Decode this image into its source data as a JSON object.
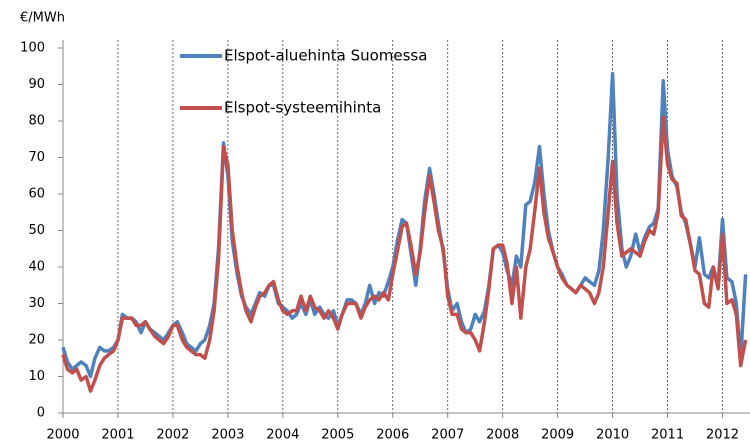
{
  "chart_data": {
    "type": "line",
    "y_label": "€/MWh",
    "x": [
      2000.0,
      2000.08,
      2000.17,
      2000.25,
      2000.33,
      2000.42,
      2000.5,
      2000.58,
      2000.67,
      2000.75,
      2000.83,
      2000.92,
      2001.0,
      2001.08,
      2001.17,
      2001.25,
      2001.33,
      2001.42,
      2001.5,
      2001.58,
      2001.67,
      2001.75,
      2001.83,
      2001.92,
      2002.0,
      2002.08,
      2002.17,
      2002.25,
      2002.33,
      2002.42,
      2002.5,
      2002.58,
      2002.67,
      2002.75,
      2002.83,
      2002.92,
      2003.0,
      2003.08,
      2003.17,
      2003.25,
      2003.33,
      2003.42,
      2003.5,
      2003.58,
      2003.67,
      2003.75,
      2003.83,
      2003.92,
      2004.0,
      2004.08,
      2004.17,
      2004.25,
      2004.33,
      2004.42,
      2004.5,
      2004.58,
      2004.67,
      2004.75,
      2004.83,
      2004.92,
      2005.0,
      2005.08,
      2005.17,
      2005.25,
      2005.33,
      2005.42,
      2005.5,
      2005.58,
      2005.67,
      2005.75,
      2005.83,
      2005.92,
      2006.0,
      2006.08,
      2006.17,
      2006.25,
      2006.33,
      2006.42,
      2006.5,
      2006.58,
      2006.67,
      2006.75,
      2006.83,
      2006.92,
      2007.0,
      2007.08,
      2007.17,
      2007.25,
      2007.33,
      2007.42,
      2007.5,
      2007.58,
      2007.67,
      2007.75,
      2007.83,
      2007.92,
      2008.0,
      2008.08,
      2008.17,
      2008.25,
      2008.33,
      2008.42,
      2008.5,
      2008.58,
      2008.67,
      2008.75,
      2008.83,
      2008.92,
      2009.0,
      2009.08,
      2009.17,
      2009.25,
      2009.33,
      2009.42,
      2009.5,
      2009.58,
      2009.67,
      2009.75,
      2009.83,
      2009.92,
      2010.0,
      2010.08,
      2010.17,
      2010.25,
      2010.33,
      2010.42,
      2010.5,
      2010.58,
      2010.67,
      2010.75,
      2010.83,
      2010.92,
      2011.0,
      2011.08,
      2011.17,
      2011.25,
      2011.33,
      2011.42,
      2011.5,
      2011.58,
      2011.67,
      2011.75,
      2011.83,
      2011.92,
      2012.0,
      2012.08,
      2012.17,
      2012.25,
      2012.33,
      2012.42
    ],
    "series": [
      {
        "name": "Elspot-aluehinta Suomessa",
        "color": "#4f81bd",
        "values": [
          18,
          14,
          12,
          13,
          14,
          13,
          10,
          15,
          18,
          17,
          17,
          18,
          20,
          27,
          26,
          26,
          25,
          22,
          25,
          23,
          22,
          21,
          20,
          22,
          24,
          25,
          22,
          19,
          18,
          17,
          19,
          20,
          24,
          30,
          45,
          74,
          65,
          47,
          38,
          32,
          29,
          27,
          30,
          33,
          32,
          35,
          35,
          30,
          29,
          28,
          26,
          27,
          30,
          27,
          31,
          27,
          29,
          27,
          26,
          28,
          24,
          27,
          31,
          31,
          30,
          27,
          30,
          35,
          30,
          33,
          32,
          36,
          40,
          47,
          53,
          52,
          44,
          35,
          45,
          58,
          67,
          60,
          52,
          44,
          34,
          28,
          30,
          25,
          22,
          23,
          27,
          25,
          28,
          35,
          45,
          46,
          44,
          39,
          35,
          43,
          40,
          57,
          58,
          63,
          73,
          60,
          50,
          44,
          40,
          38,
          35,
          34,
          33,
          35,
          37,
          36,
          35,
          39,
          50,
          70,
          93,
          60,
          45,
          40,
          43,
          49,
          44,
          48,
          51,
          52,
          56,
          91,
          72,
          65,
          62,
          55,
          52,
          46,
          40,
          48,
          38,
          37,
          40,
          35,
          53,
          37,
          36,
          30,
          15,
          38
        ]
      },
      {
        "name": "Elspot-systeemihinta",
        "color": "#c0504d",
        "values": [
          16,
          12,
          11,
          12,
          9,
          10,
          6,
          9,
          13,
          15,
          16,
          17,
          20,
          26,
          26,
          26,
          24,
          24,
          25,
          23,
          21,
          20,
          19,
          21,
          24,
          24,
          20,
          18,
          17,
          16,
          16,
          15,
          20,
          28,
          42,
          73,
          68,
          50,
          40,
          33,
          28,
          25,
          29,
          32,
          33,
          35,
          36,
          31,
          28,
          27,
          28,
          28,
          32,
          28,
          32,
          29,
          28,
          26,
          28,
          26,
          23,
          27,
          30,
          30,
          30,
          26,
          29,
          31,
          32,
          31,
          33,
          31,
          38,
          44,
          51,
          52,
          46,
          38,
          44,
          55,
          65,
          58,
          50,
          45,
          32,
          27,
          27,
          23,
          22,
          22,
          20,
          17,
          25,
          34,
          45,
          46,
          46,
          41,
          30,
          40,
          26,
          40,
          45,
          55,
          67,
          55,
          48,
          44,
          40,
          37,
          35,
          34,
          33,
          35,
          34,
          33,
          30,
          33,
          40,
          55,
          69,
          52,
          43,
          44,
          45,
          44,
          43,
          47,
          50,
          49,
          55,
          81,
          68,
          64,
          63,
          54,
          53,
          46,
          39,
          38,
          30,
          29,
          40,
          34,
          49,
          30,
          31,
          27,
          13,
          20
        ]
      }
    ],
    "xlim": [
      2000,
      2012.5
    ],
    "xticks": [
      2000,
      2001,
      2002,
      2003,
      2004,
      2005,
      2006,
      2007,
      2008,
      2009,
      2010,
      2011,
      2012
    ],
    "ylim": [
      0,
      100
    ],
    "yticks": [
      0,
      10,
      20,
      30,
      40,
      50,
      60,
      70,
      80,
      90,
      100
    ],
    "grid": true
  }
}
